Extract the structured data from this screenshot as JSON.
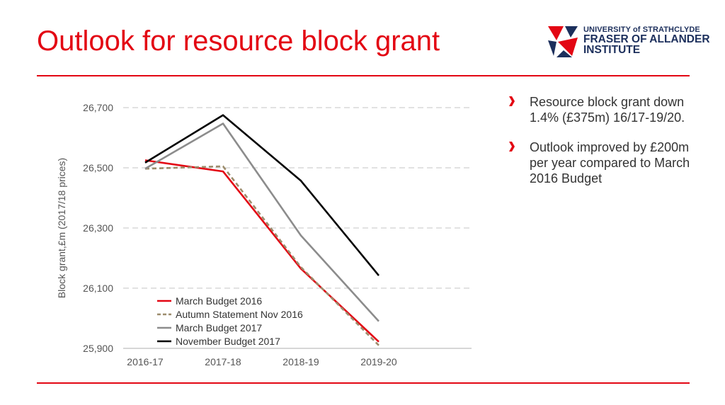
{
  "slide": {
    "title": "Outlook for resource block grant"
  },
  "logo": {
    "line1": "UNIVERSITY of STRATHCLYDE",
    "line2": "FRASER OF ALLANDER",
    "line3": "INSTITUTE"
  },
  "bullets": [
    {
      "text": "Resource block grant down 1.4% (£375m) 16/17-19/20."
    },
    {
      "text": "Outlook improved by £200m per year compared to March 2016 Budget"
    }
  ],
  "colors": {
    "accent": "#e30613",
    "navy": "#1c2f5c"
  },
  "chart_data": {
    "type": "line",
    "title": "",
    "xlabel": "",
    "ylabel": "Block grant,£m (2017/18 prices)",
    "categories": [
      "2016-17",
      "2017-18",
      "2018-19",
      "2019-20"
    ],
    "ylim": [
      25900,
      26700
    ],
    "yticks": [
      25900,
      26100,
      26300,
      26500,
      26700
    ],
    "ytick_labels": [
      "25,900",
      "26,100",
      "26,300",
      "26,500",
      "26,700"
    ],
    "grid": true,
    "legend_position": "bottom-left",
    "series": [
      {
        "name": "March Budget 2016",
        "values": [
          26525,
          26488,
          26165,
          25922
        ],
        "color": "#e30613",
        "dashed": false
      },
      {
        "name": "Autumn Statement Nov 2016",
        "values": [
          26497,
          26505,
          26170,
          25910
        ],
        "color": "#9c8c6c",
        "dashed": true
      },
      {
        "name": "March Budget 2017",
        "values": [
          26497,
          26647,
          26275,
          25990
        ],
        "color": "#8c8c8c",
        "dashed": false
      },
      {
        "name": "November Budget 2017",
        "values": [
          26517,
          26675,
          26457,
          26142
        ],
        "color": "#000000",
        "dashed": false
      }
    ]
  }
}
